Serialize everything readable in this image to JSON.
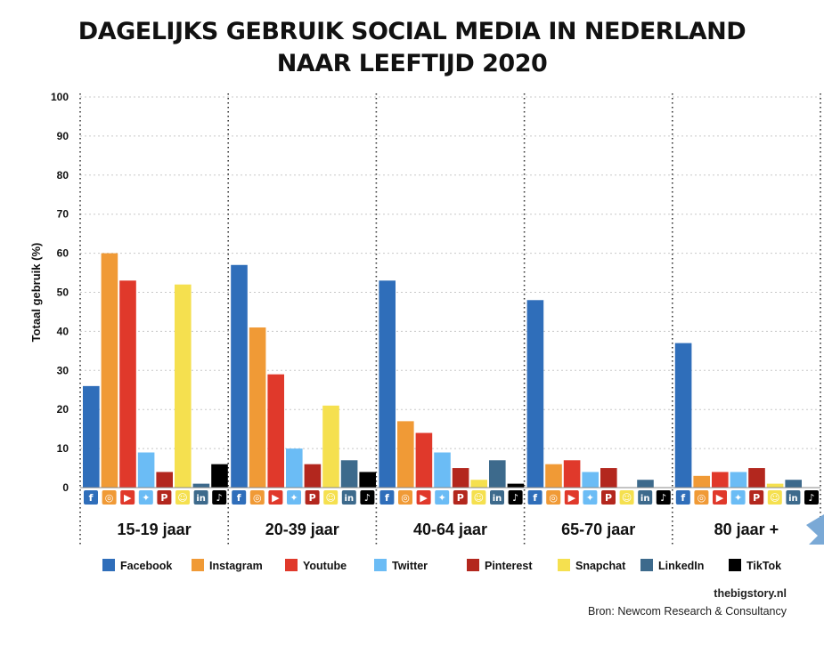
{
  "title_line1": "DAGELIJKS GEBRUIK SOCIAL MEDIA IN NEDERLAND",
  "title_line2": "NAAR LEEFTIJD 2020",
  "footer": {
    "site": "thebigstory.nl",
    "source": "Bron: Newcom Research & Consultancy"
  },
  "chart_data": {
    "type": "bar",
    "ylabel": "Totaal gebruik (%)",
    "xlabel": "",
    "ylim": [
      0,
      100
    ],
    "yticks": [
      0,
      10,
      20,
      30,
      40,
      50,
      60,
      70,
      80,
      90,
      100
    ],
    "grid": true,
    "legend_position": "bottom",
    "categories": [
      "15-19 jaar",
      "20-39 jaar",
      "40-64 jaar",
      "65-70 jaar",
      "80 jaar +"
    ],
    "series": [
      {
        "name": "Facebook",
        "color": "#2f6eba",
        "icon": "facebook-icon",
        "values": [
          26,
          57,
          53,
          48,
          37
        ]
      },
      {
        "name": "Instagram",
        "color": "#f09a36",
        "icon": "instagram-icon",
        "values": [
          60,
          41,
          17,
          6,
          3
        ]
      },
      {
        "name": "Youtube",
        "color": "#e0392b",
        "icon": "youtube-icon",
        "values": [
          53,
          29,
          14,
          7,
          4
        ]
      },
      {
        "name": "Twitter",
        "color": "#6bbcf5",
        "icon": "twitter-icon",
        "values": [
          9,
          10,
          9,
          4,
          4
        ]
      },
      {
        "name": "Pinterest",
        "color": "#b3271e",
        "icon": "pinterest-icon",
        "values": [
          4,
          6,
          5,
          5,
          5
        ]
      },
      {
        "name": "Snapchat",
        "color": "#f5e04f",
        "icon": "snapchat-icon",
        "values": [
          52,
          21,
          2,
          0,
          1
        ]
      },
      {
        "name": "LinkedIn",
        "color": "#3d6a8c",
        "icon": "linkedin-icon",
        "values": [
          1,
          7,
          7,
          2,
          2
        ]
      },
      {
        "name": "TikTok",
        "color": "#000000",
        "icon": "tiktok-icon",
        "values": [
          6,
          4,
          1,
          0,
          0
        ]
      }
    ]
  }
}
